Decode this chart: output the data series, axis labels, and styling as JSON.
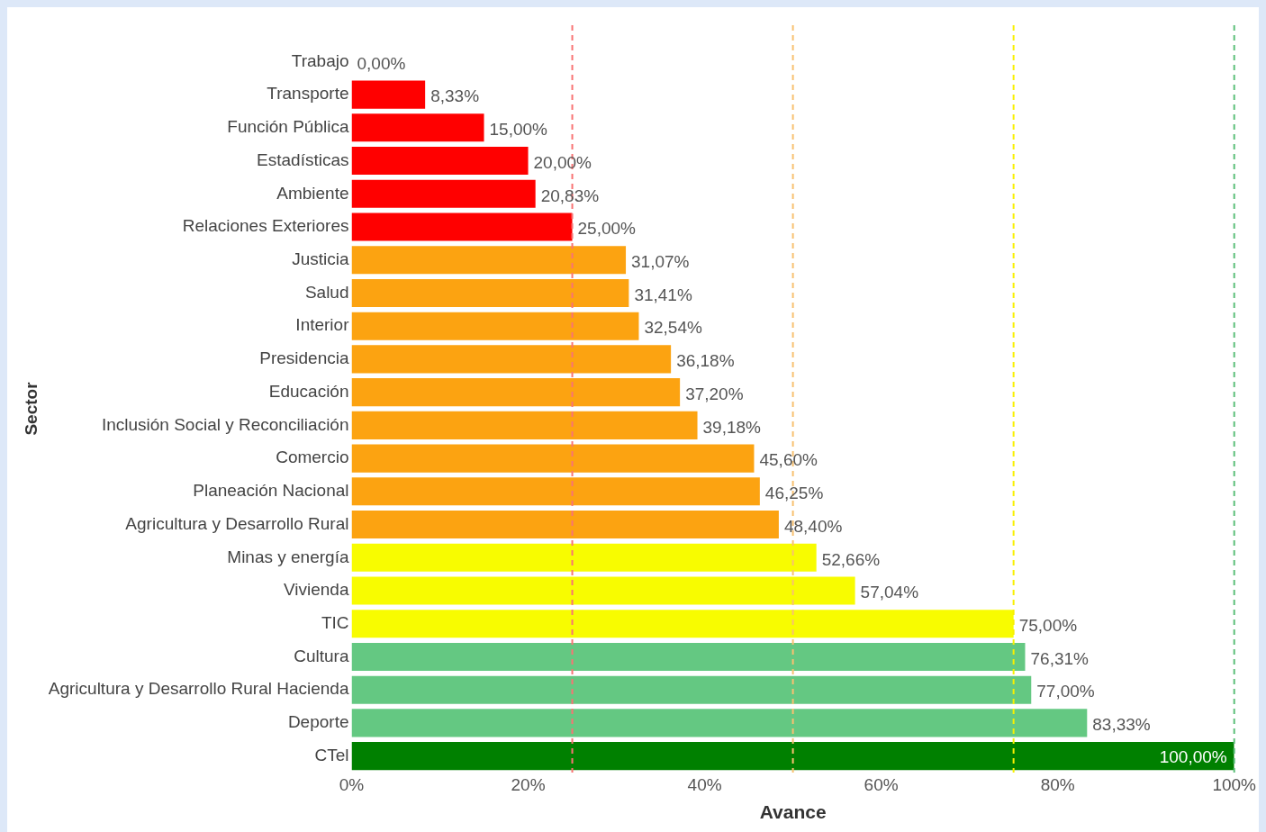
{
  "chart_data": {
    "type": "bar",
    "orientation": "horizontal",
    "xlabel": "Avance",
    "ylabel": "Sector",
    "categories": [
      "Trabajo",
      "Transporte",
      "Función Pública",
      "Estadísticas",
      "Ambiente",
      "Relaciones Exteriores",
      "Justicia",
      "Salud",
      "Interior",
      "Presidencia",
      "Educación",
      "Inclusión Social y Reconciliación",
      "Comercio",
      "Planeación Nacional",
      "Agricultura y Desarrollo Rural",
      "Minas y energía",
      "Vivienda",
      "TIC",
      "Cultura",
      "Agricultura y Desarrollo Rural Hacienda",
      "Deporte",
      "CTel"
    ],
    "values": [
      0,
      8.33,
      15,
      20,
      20.83,
      25,
      31.07,
      31.41,
      32.54,
      36.18,
      37.2,
      39.18,
      45.6,
      46.25,
      48.4,
      52.66,
      57.04,
      75,
      76.31,
      77,
      83.33,
      100
    ],
    "value_labels": [
      "0,00%",
      "8,33%",
      "15,00%",
      "20,00%",
      "20,83%",
      "25,00%",
      "31,07%",
      "31,41%",
      "32,54%",
      "36,18%",
      "37,20%",
      "39,18%",
      "45,60%",
      "46,25%",
      "48,40%",
      "52,66%",
      "57,04%",
      "75,00%",
      "76,31%",
      "77,00%",
      "83,33%",
      "100,00%"
    ],
    "colors": [
      "#ff0000",
      "#ff0000",
      "#ff0000",
      "#ff0000",
      "#ff0000",
      "#ff0000",
      "#fca311",
      "#fca311",
      "#fca311",
      "#fca311",
      "#fca311",
      "#fca311",
      "#fca311",
      "#fca311",
      "#fca311",
      "#f8fc00",
      "#f8fc00",
      "#f8fc00",
      "#64c882",
      "#64c882",
      "#64c882",
      "#008000"
    ],
    "xlim": [
      0,
      100
    ],
    "xticks": [
      {
        "value": 0,
        "label": "0%"
      },
      {
        "value": 20,
        "label": "20%"
      },
      {
        "value": 40,
        "label": "40%"
      },
      {
        "value": 60,
        "label": "60%"
      },
      {
        "value": 80,
        "label": "80%"
      },
      {
        "value": 100,
        "label": "100%"
      }
    ],
    "ref_lines": [
      {
        "axis": "x",
        "value": 25,
        "color": "#f87474",
        "line_style": "dashed"
      },
      {
        "axis": "x",
        "value": 50,
        "color": "#f8c070",
        "line_style": "dashed"
      },
      {
        "axis": "x",
        "value": 75,
        "color": "#f8f000",
        "line_style": "dashed"
      },
      {
        "axis": "x",
        "value": 100,
        "color": "#5cbf7a",
        "line_style": "dashed"
      }
    ],
    "grid": false,
    "legend": false
  }
}
